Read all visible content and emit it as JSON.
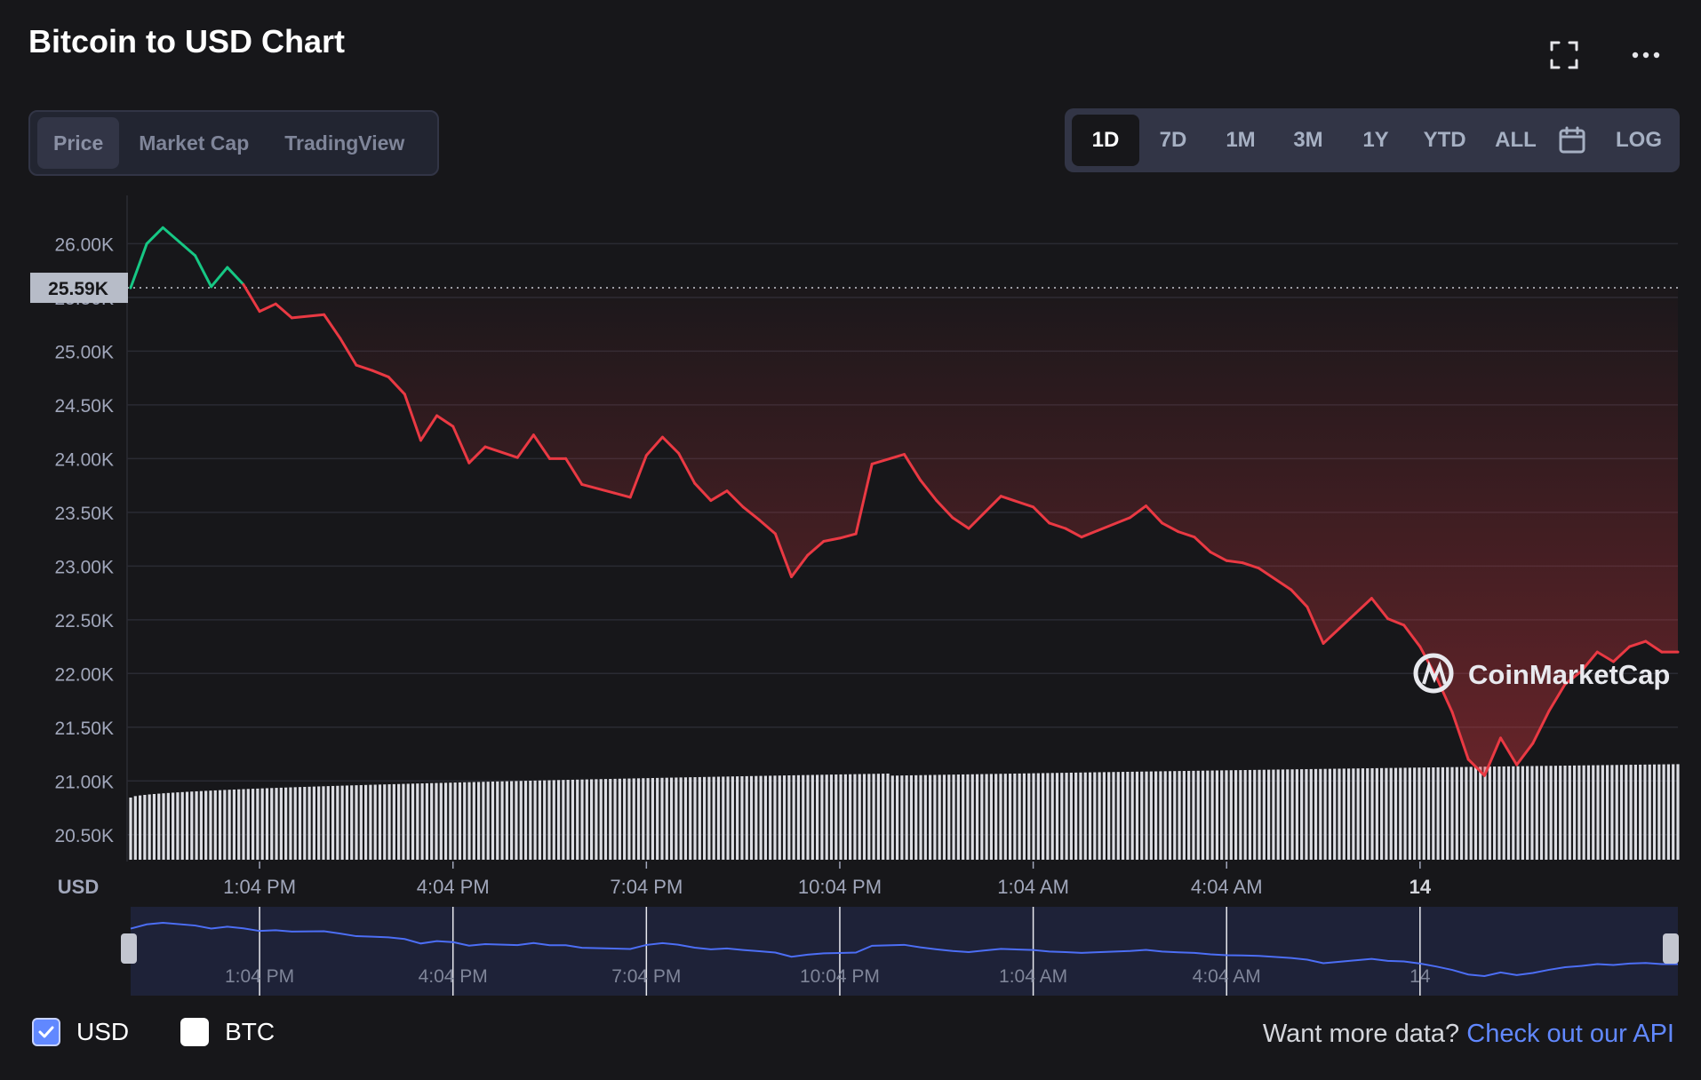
{
  "title": "Bitcoin to USD Chart",
  "tabs": [
    "Price",
    "Market Cap",
    "TradingView"
  ],
  "active_tab": 0,
  "ranges": [
    "1D",
    "7D",
    "1M",
    "3M",
    "1Y",
    "YTD",
    "ALL"
  ],
  "active_range": 0,
  "log_label": "LOG",
  "watermark": "CoinMarketCap",
  "legend": {
    "usd": "USD",
    "btc": "BTC"
  },
  "api_text": "Want more data?",
  "api_link": "Check out our API",
  "colors": {
    "up": "#16c784",
    "down": "#ea3943",
    "navigator": "#4c6ef5",
    "accent": "#6188ff"
  },
  "chart_data": {
    "type": "line",
    "y_ticks": [
      "26.00K",
      "25.50K",
      "25.00K",
      "24.50K",
      "24.00K",
      "23.50K",
      "23.00K",
      "22.50K",
      "22.00K",
      "21.50K",
      "21.00K",
      "20.50K"
    ],
    "ylim": [
      20250,
      26450
    ],
    "open_price": 25590,
    "open_label": "25.59K",
    "y_unit": "USD",
    "x_ticks": [
      "1:04 PM",
      "4:04 PM",
      "7:04 PM",
      "10:04 PM",
      "1:04 AM",
      "4:04 AM",
      "14"
    ],
    "x_tick_hours": [
      2,
      5,
      8,
      11,
      14,
      17,
      20
    ],
    "x_hours": [
      0,
      0.25,
      0.5,
      1,
      1.25,
      1.5,
      1.75,
      2,
      2.25,
      2.5,
      3,
      3.25,
      3.5,
      3.75,
      4,
      4.25,
      4.5,
      4.75,
      5,
      5.25,
      5.5,
      6,
      6.25,
      6.5,
      6.75,
      7,
      7.5,
      7.75,
      8,
      8.25,
      8.5,
      8.75,
      9,
      9.25,
      9.5,
      9.75,
      10,
      10.25,
      10.5,
      10.75,
      11,
      11.25,
      11.5,
      12,
      12.25,
      12.5,
      12.75,
      13,
      13.25,
      13.5,
      14,
      14.25,
      14.5,
      14.75,
      15,
      15.5,
      15.75,
      16,
      16.25,
      16.5,
      16.75,
      17,
      17.25,
      17.5,
      18,
      18.25,
      18.5,
      18.75,
      19,
      19.25,
      19.5,
      19.75,
      20,
      20.25,
      20.5,
      20.75,
      21,
      21.25,
      21.5,
      21.75,
      22,
      22.25,
      22.5,
      22.75,
      23,
      23.25,
      23.5,
      23.75,
      24
    ],
    "price": [
      25590,
      26000,
      26150,
      25890,
      25600,
      25780,
      25620,
      25370,
      25440,
      25310,
      25340,
      25120,
      24870,
      24820,
      24760,
      24600,
      24170,
      24400,
      24300,
      23960,
      24110,
      24010,
      24220,
      24000,
      24000,
      23760,
      23680,
      23640,
      24030,
      24200,
      24050,
      23770,
      23610,
      23700,
      23550,
      23430,
      23300,
      22900,
      23100,
      23230,
      23260,
      23300,
      23950,
      24040,
      23800,
      23610,
      23450,
      23350,
      23500,
      23650,
      23550,
      23400,
      23350,
      23270,
      23330,
      23450,
      23560,
      23400,
      23320,
      23270,
      23130,
      23050,
      23030,
      22980,
      22780,
      22620,
      22280,
      22420,
      22560,
      22700,
      22510,
      22450,
      22250,
      21970,
      21640,
      21200,
      21050,
      21400,
      21150,
      21350,
      21650,
      21900,
      22020,
      22200,
      22110,
      22250,
      22300,
      22200,
      22200
    ],
    "volume_range": [
      19900000000,
      20920000000
    ],
    "volume_start": 19900000000,
    "volume_end": 20920000000,
    "volume_dip_at_hour": 11.8
  }
}
